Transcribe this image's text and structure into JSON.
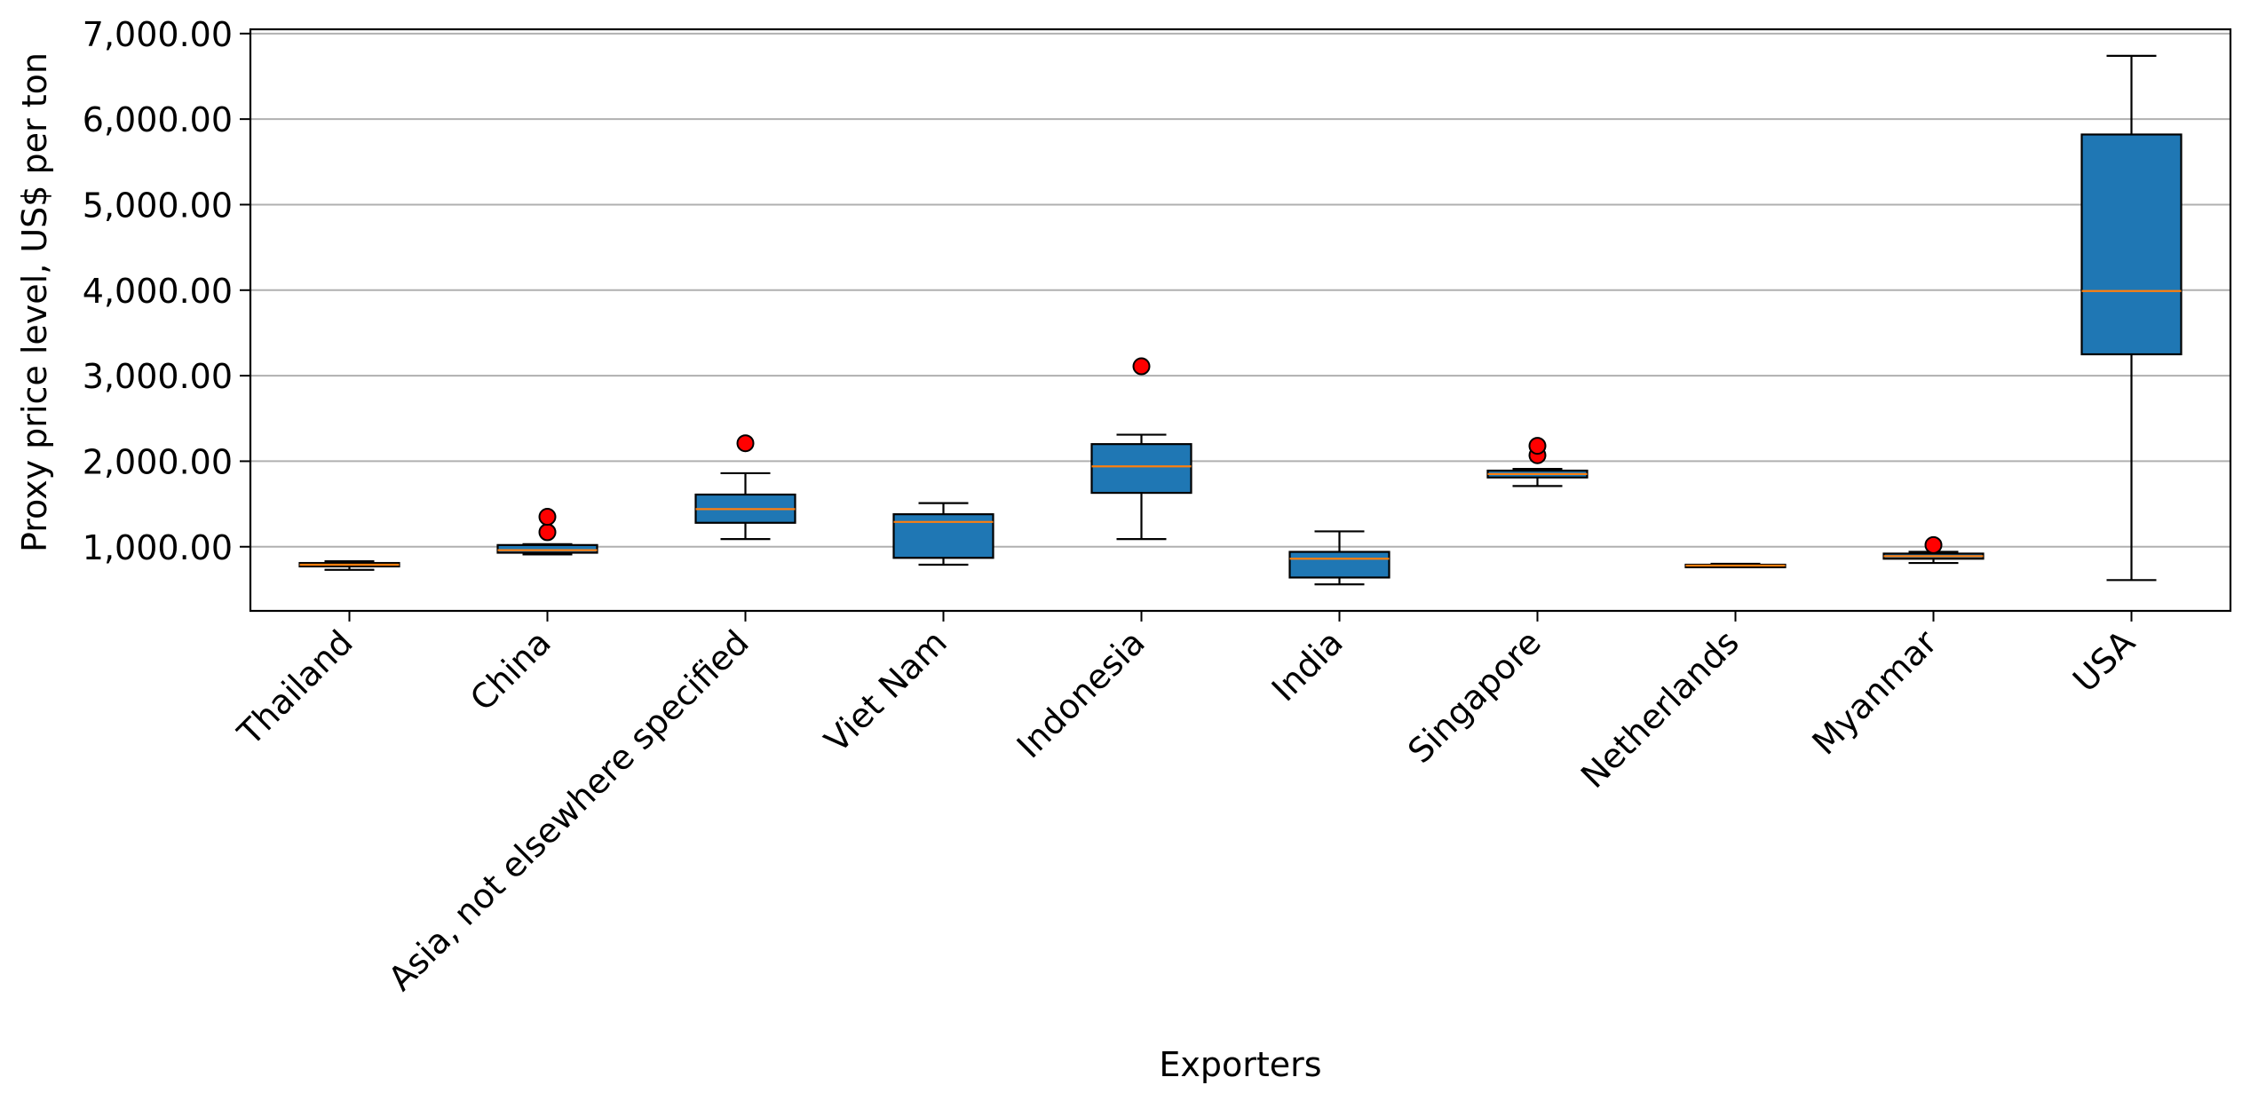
{
  "chart_data": {
    "type": "box",
    "title": "",
    "xlabel": "Exporters",
    "ylabel": "Proxy price level, US$ per ton",
    "ylim": [
      250,
      7050
    ],
    "yticks": [
      1000,
      2000,
      3000,
      4000,
      5000,
      6000,
      7000
    ],
    "ytick_labels": [
      "1,000.00",
      "2,000.00",
      "3,000.00",
      "4,000.00",
      "5,000.00",
      "6,000.00",
      "7,000.00"
    ],
    "grid": "y",
    "legend": "none",
    "colors": {
      "box_fill": "#1f77b4",
      "median": "#ff7f0e",
      "outlier": "#ff0000",
      "grid": "#b0b0b0",
      "axis": "#000000"
    },
    "categories": [
      "Thailand",
      "China",
      "Asia, not elsewhere specified",
      "Viet Nam",
      "Indonesia",
      "India",
      "Singapore",
      "Netherlands",
      "Myanmar",
      "USA"
    ],
    "boxes": [
      {
        "category": "Thailand",
        "whisker_low": 730,
        "q1": 770,
        "median": 790,
        "q3": 810,
        "whisker_high": 830,
        "outliers": []
      },
      {
        "category": "China",
        "whisker_low": 910,
        "q1": 930,
        "median": 960,
        "q3": 1020,
        "whisker_high": 1030,
        "outliers": [
          1170,
          1350
        ]
      },
      {
        "category": "Asia, not elsewhere specified",
        "whisker_low": 1090,
        "q1": 1280,
        "median": 1440,
        "q3": 1610,
        "whisker_high": 1860,
        "outliers": [
          2210
        ]
      },
      {
        "category": "Viet Nam",
        "whisker_low": 790,
        "q1": 870,
        "median": 1290,
        "q3": 1380,
        "whisker_high": 1510,
        "outliers": []
      },
      {
        "category": "Indonesia",
        "whisker_low": 1090,
        "q1": 1630,
        "median": 1940,
        "q3": 2200,
        "whisker_high": 2310,
        "outliers": [
          3110
        ]
      },
      {
        "category": "India",
        "whisker_low": 560,
        "q1": 640,
        "median": 860,
        "q3": 940,
        "whisker_high": 1180,
        "outliers": []
      },
      {
        "category": "Singapore",
        "whisker_low": 1710,
        "q1": 1810,
        "median": 1850,
        "q3": 1890,
        "whisker_high": 1910,
        "outliers": [
          2070,
          2180
        ]
      },
      {
        "category": "Netherlands",
        "whisker_low": 760,
        "q1": 760,
        "median": 780,
        "q3": 790,
        "whisker_high": 800,
        "outliers": []
      },
      {
        "category": "Myanmar",
        "whisker_low": 810,
        "q1": 860,
        "median": 890,
        "q3": 920,
        "whisker_high": 940,
        "outliers": [
          1020
        ]
      },
      {
        "category": "USA",
        "whisker_low": 610,
        "q1": 3250,
        "median": 3990,
        "q3": 5820,
        "whisker_high": 6740,
        "outliers": []
      }
    ]
  }
}
